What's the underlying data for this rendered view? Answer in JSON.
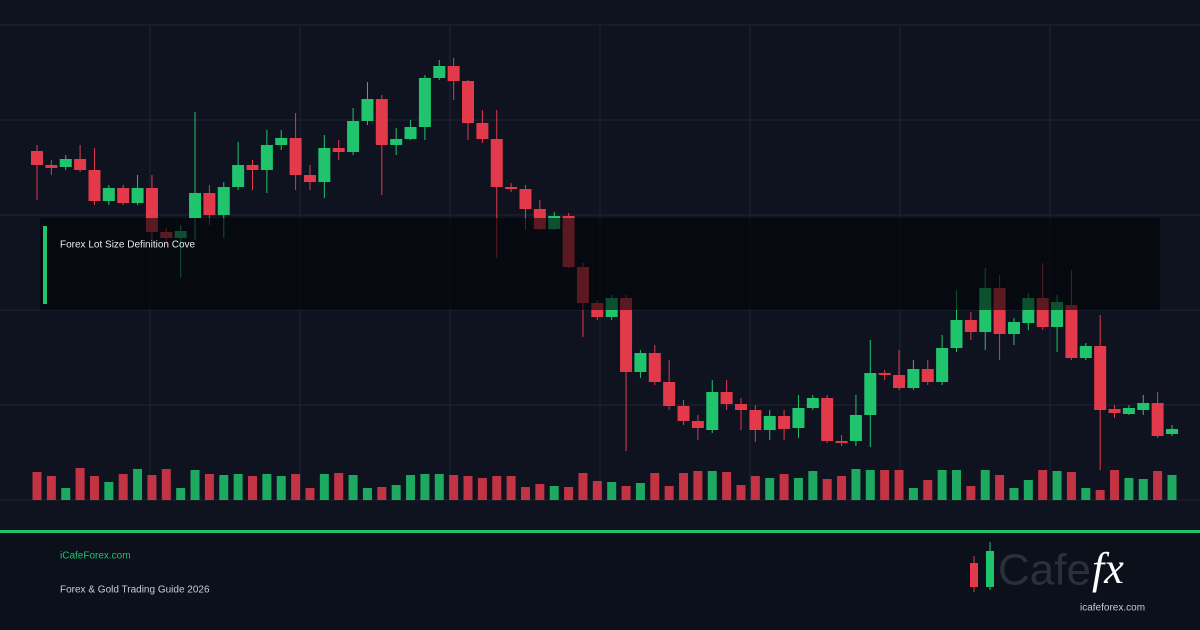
{
  "chart_data": {
    "type": "candlestick",
    "ylim": [
      0,
      475
    ],
    "up_color": "#20c46c",
    "down_color": "#e23a4b",
    "open": [
      349,
      335,
      333,
      341,
      330,
      299,
      312,
      297,
      312,
      268,
      262,
      282,
      307,
      285,
      313,
      335,
      330,
      355,
      362,
      325,
      318,
      352,
      348,
      379,
      401,
      355,
      361,
      373,
      422,
      434,
      419,
      377,
      361,
      313,
      311,
      291,
      271,
      284,
      233,
      197,
      183,
      202,
      128,
      147,
      118,
      94,
      79,
      70,
      108,
      96,
      90,
      70,
      84,
      72,
      92,
      102,
      59,
      59,
      85,
      127,
      125,
      112,
      131,
      118,
      152,
      180,
      168,
      212,
      166,
      177,
      202,
      173,
      195,
      142,
      154,
      91,
      86,
      90,
      97,
      66
    ],
    "close": [
      335,
      332,
      341,
      330,
      299,
      312,
      297,
      312,
      268,
      262,
      269,
      307,
      285,
      313,
      335,
      330,
      355,
      362,
      325,
      318,
      352,
      348,
      379,
      401,
      355,
      361,
      373,
      422,
      434,
      419,
      377,
      361,
      313,
      311,
      291,
      271,
      284,
      233,
      197,
      183,
      202,
      128,
      147,
      118,
      94,
      79,
      72,
      108,
      96,
      90,
      70,
      84,
      71,
      92,
      102,
      59,
      57,
      85,
      127,
      125,
      112,
      131,
      118,
      152,
      180,
      168,
      212,
      166,
      178,
      202,
      173,
      198,
      142,
      154,
      90,
      87,
      92,
      97,
      64,
      71
    ],
    "high": [
      355,
      340,
      345,
      355,
      352,
      315,
      315,
      325,
      325,
      272,
      275,
      388,
      315,
      318,
      358,
      340,
      370,
      370,
      387,
      335,
      365,
      360,
      392,
      418,
      405,
      372,
      380,
      425,
      440,
      442,
      420,
      390,
      390,
      317,
      315,
      300,
      288,
      287,
      237,
      200,
      205,
      205,
      150,
      155,
      140,
      100,
      85,
      120,
      120,
      102,
      95,
      90,
      90,
      105,
      105,
      105,
      65,
      105,
      160,
      130,
      150,
      140,
      140,
      165,
      210,
      188,
      232,
      225,
      182,
      207,
      237,
      205,
      230,
      157,
      185,
      95,
      95,
      105,
      108,
      75
    ],
    "low": [
      300,
      325,
      330,
      328,
      295,
      295,
      295,
      295,
      252,
      255,
      222,
      260,
      275,
      262,
      310,
      310,
      307,
      350,
      310,
      310,
      302,
      340,
      345,
      375,
      305,
      345,
      360,
      360,
      420,
      400,
      360,
      357,
      242,
      308,
      270,
      270,
      270,
      232,
      163,
      180,
      180,
      49,
      122,
      115,
      90,
      75,
      60,
      67,
      90,
      70,
      58,
      60,
      60,
      62,
      90,
      57,
      54,
      54,
      53,
      120,
      110,
      110,
      115,
      115,
      148,
      160,
      150,
      140,
      155,
      170,
      170,
      148,
      140,
      140,
      30,
      82,
      85,
      85,
      62,
      64
    ],
    "volume": [
      28,
      24,
      12,
      32,
      24,
      18,
      26,
      31,
      25,
      31,
      12,
      30,
      26,
      25,
      26,
      24,
      26,
      24,
      26,
      12,
      26,
      27,
      25,
      12,
      13,
      15,
      25,
      26,
      26,
      25,
      24,
      22,
      24,
      24,
      13,
      16,
      14,
      13,
      27,
      19,
      18,
      14,
      17,
      27,
      14,
      27,
      29,
      29,
      28,
      15,
      24,
      22,
      26,
      22,
      29,
      21,
      24,
      31,
      30,
      30,
      30,
      12,
      20,
      30,
      30,
      14,
      30,
      25,
      12,
      20,
      30,
      29,
      28,
      12,
      10,
      30,
      22,
      21,
      29,
      25
    ]
  },
  "overlay": {
    "title": "Forex Lot Size Definition Cove"
  },
  "footer": {
    "site": "iCafeForex.com",
    "subtitle": "Forex & Gold Trading Guide 2026"
  },
  "logo": {
    "word": "Cafe",
    "accent": "fx",
    "url": "icafeforex.com"
  }
}
